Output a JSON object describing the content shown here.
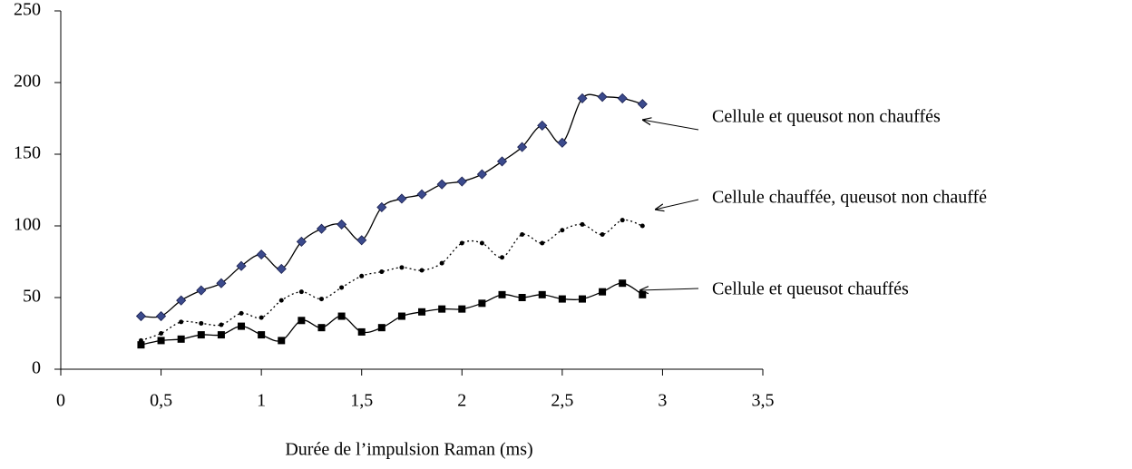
{
  "chart_data": {
    "type": "line",
    "xlabel": "Durée de l’impulsion Raman (ms)",
    "x": [
      0.4,
      0.5,
      0.6,
      0.7,
      0.8,
      0.9,
      1.0,
      1.1,
      1.2,
      1.3,
      1.4,
      1.5,
      1.6,
      1.7,
      1.8,
      1.9,
      2.0,
      2.1,
      2.2,
      2.3,
      2.4,
      2.5,
      2.6,
      2.7,
      2.8,
      2.9
    ],
    "series": [
      {
        "name": "Cellule et queusot non chauffés",
        "color": "#3b4a8c",
        "marker": "diamond",
        "line_style": "solid",
        "values": [
          37,
          37,
          48,
          55,
          60,
          72,
          80,
          70,
          89,
          98,
          101,
          90,
          113,
          119,
          122,
          129,
          131,
          136,
          145,
          155,
          170,
          158,
          189,
          190,
          189,
          185
        ]
      },
      {
        "name": "Cellule chauffée, queusot non chauffé",
        "color": "#000000",
        "marker": "dot",
        "line_style": "dotted",
        "values": [
          20,
          25,
          33,
          32,
          31,
          39,
          36,
          48,
          54,
          49,
          57,
          65,
          68,
          71,
          69,
          74,
          88,
          88,
          78,
          94,
          88,
          97,
          101,
          94,
          104,
          100
        ]
      },
      {
        "name": "Cellule et queusot chauffés",
        "color": "#000000",
        "marker": "square",
        "line_style": "solid",
        "values": [
          17,
          20,
          21,
          24,
          24,
          30,
          24,
          20,
          34,
          29,
          37,
          26,
          29,
          37,
          40,
          42,
          42,
          46,
          52,
          50,
          52,
          49,
          49,
          54,
          60,
          52
        ]
      }
    ],
    "xlim": [
      0,
      3.5
    ],
    "xticks": [
      0,
      {
        "value": 0.5,
        "label": "0,5"
      },
      1,
      {
        "value": 1.5,
        "label": "1,5"
      },
      2,
      {
        "value": 2.5,
        "label": "2,5"
      },
      3,
      {
        "value": 3.5,
        "label": "3,5"
      }
    ],
    "ylim": [
      0,
      250
    ],
    "yticks": [
      0,
      50,
      100,
      150,
      200,
      250
    ],
    "grid": false
  }
}
